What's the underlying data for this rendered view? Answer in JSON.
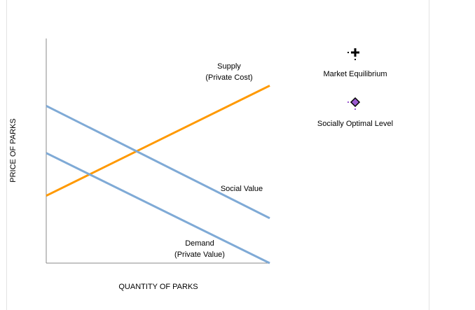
{
  "chart_data": {
    "type": "line",
    "xlabel": "QUANTITY OF PARKS",
    "ylabel": "PRICE OF PARKS",
    "xlim": [
      0,
      100
    ],
    "ylim": [
      0,
      100
    ],
    "series": [
      {
        "name": "Supply (Private Cost)",
        "label_lines": [
          "Supply",
          "(Private Cost)"
        ],
        "color": "#ff9900",
        "points": [
          [
            0,
            30
          ],
          [
            100,
            79
          ]
        ]
      },
      {
        "name": "Social Value",
        "label_lines": [
          "Social Value"
        ],
        "color": "#7faad6",
        "points": [
          [
            0,
            70
          ],
          [
            100,
            20
          ]
        ]
      },
      {
        "name": "Demand (Private Value)",
        "label_lines": [
          "Demand",
          "(Private Value)"
        ],
        "color": "#7faad6",
        "points": [
          [
            0,
            49
          ],
          [
            100,
            0
          ]
        ]
      }
    ],
    "legend": {
      "placement": "right",
      "items": [
        {
          "label": "Market Equilibrium",
          "icon": "plus-marker-icon",
          "color": "#000000"
        },
        {
          "label": "Socially Optimal Level",
          "icon": "diamond-marker-icon",
          "color": "#9b59d0"
        }
      ]
    }
  }
}
